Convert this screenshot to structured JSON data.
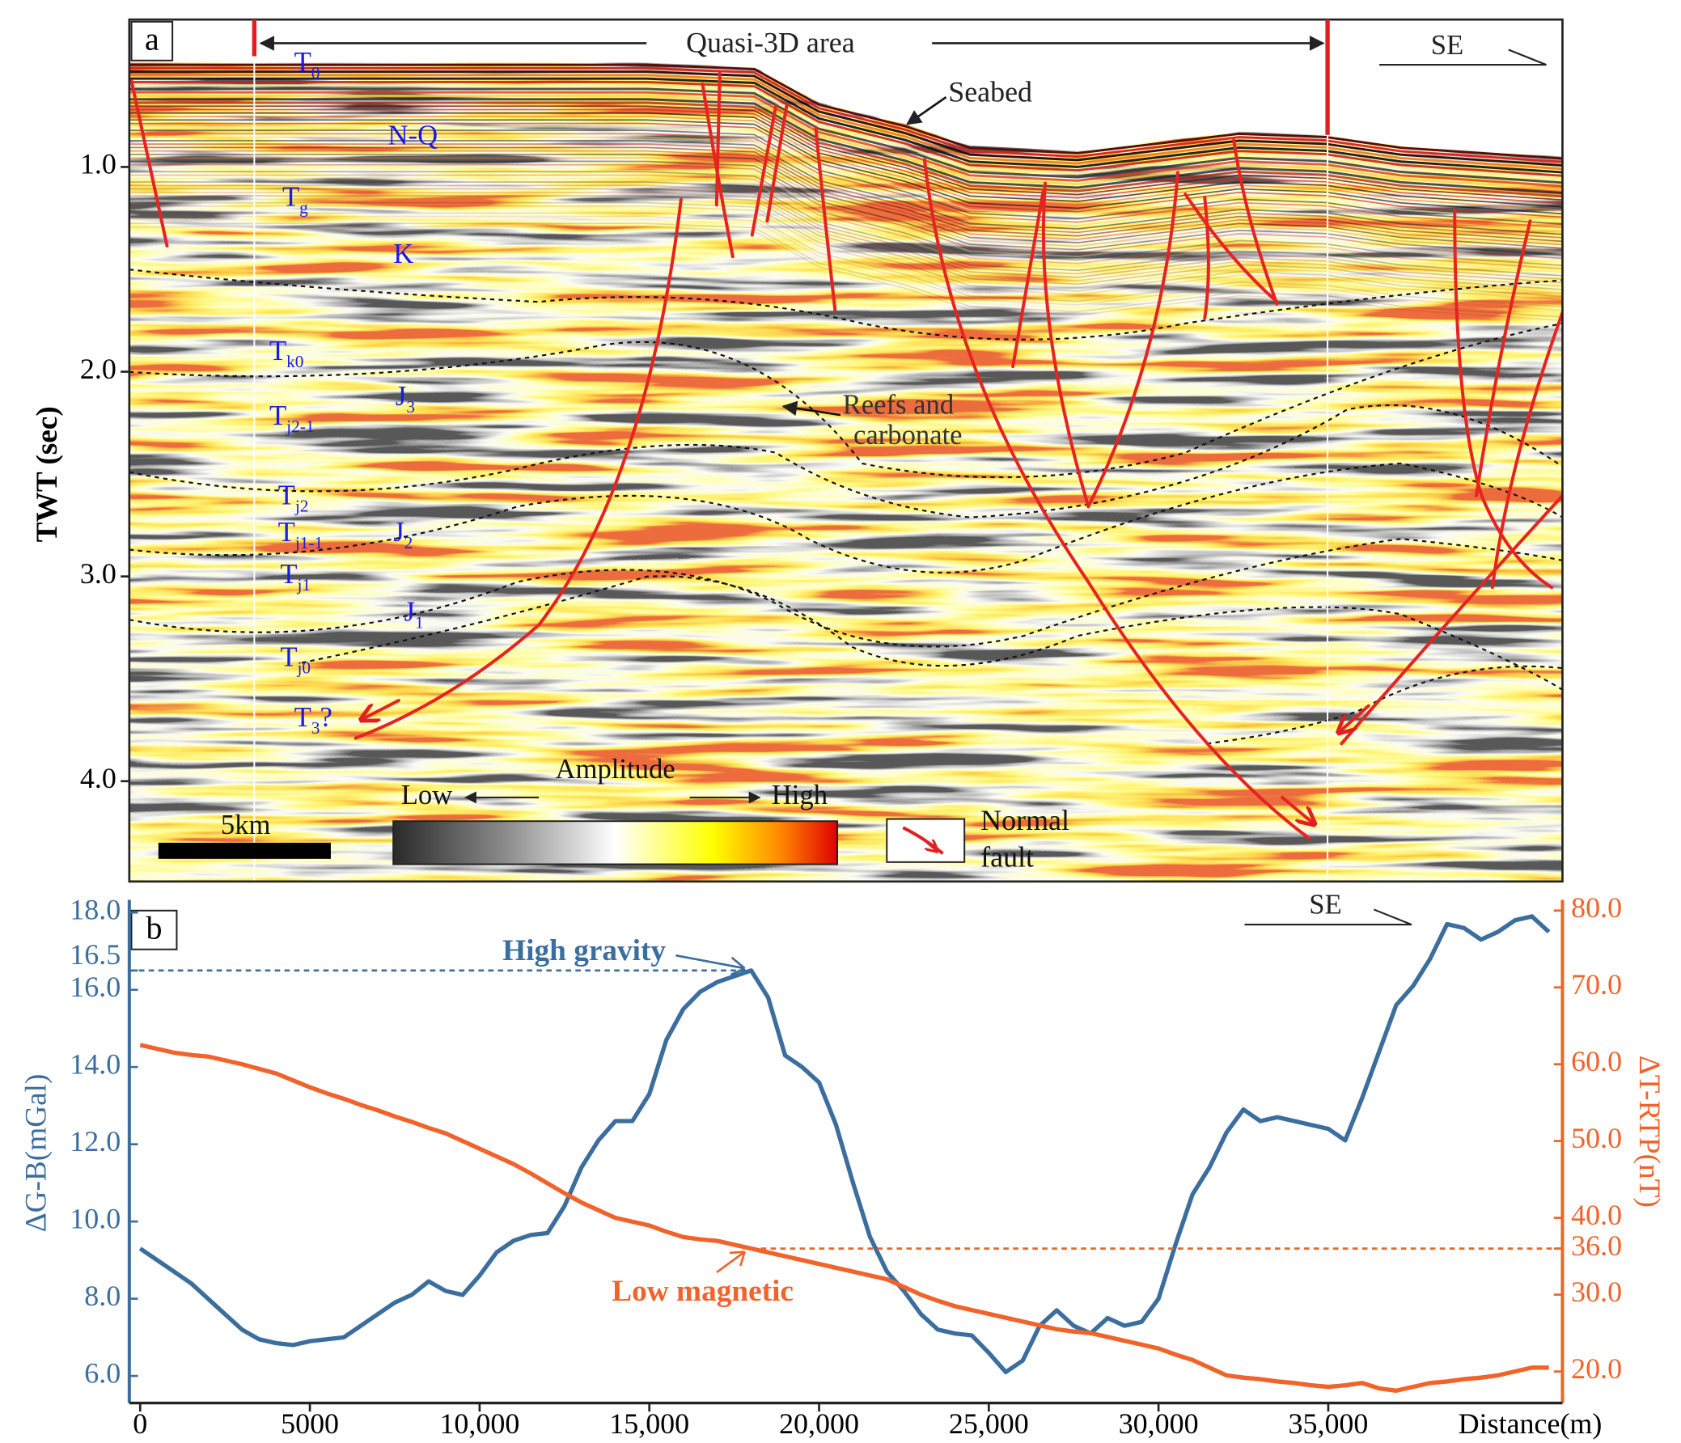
{
  "chart_data": [
    {
      "type": "seismic",
      "panel": "a",
      "ylabel": "TWT (sec)",
      "y_inverted": true,
      "ylim": [
        0.28,
        4.49
      ],
      "yticks": [
        {
          "value": 1,
          "label": "1.0"
        },
        {
          "value": 2,
          "label": "2.0"
        },
        {
          "value": 3,
          "label": "3.0"
        },
        {
          "value": 4,
          "label": "4.0"
        }
      ],
      "area": "Quasi-3D area",
      "direction": "SE",
      "seabed": "Seabed",
      "reefs": [
        "Reefs and",
        "carbonate"
      ],
      "horizons": [
        {
          "text": "T",
          "sub": "0"
        },
        {
          "text": "N-Q"
        },
        {
          "text": "T",
          "sub": "g"
        },
        {
          "text": "K"
        },
        {
          "text": "T",
          "sub": "k0"
        },
        {
          "text": "J",
          "sub": "3"
        },
        {
          "text": "T",
          "sub": "j2-1"
        },
        {
          "text": "T",
          "sub": "j2"
        },
        {
          "text": "T",
          "sub": "j1-1"
        },
        {
          "text": "J",
          "sub": "2"
        },
        {
          "text": "T",
          "sub": "j1"
        },
        {
          "text": "J",
          "sub": "1"
        },
        {
          "text": "T",
          "sub": "j0"
        },
        {
          "text": "T",
          "sub": "3",
          "after": "?"
        }
      ],
      "colorbar": {
        "title": "Amplitude",
        "low": "Low",
        "high": "High"
      },
      "scale_bar": "5km",
      "legend": [
        "Normal",
        "fault"
      ]
    },
    {
      "type": "line",
      "panel": "b",
      "direction": "SE",
      "xlabel": "Distance(m)",
      "ylabel": "ΔG-B(mGal)",
      "y2label": "ΔT-RTP(nT)",
      "xlim": [
        -320,
        41900
      ],
      "xticks": [
        0,
        5000,
        {
          "value": 10000,
          "label": "10,000"
        },
        {
          "value": 15000,
          "label": "15,000"
        },
        {
          "value": 20000,
          "label": "20,000"
        },
        {
          "value": 25000,
          "label": "25,000"
        },
        {
          "value": 30000,
          "label": "30,000"
        },
        {
          "value": 35000,
          "label": "35,000"
        }
      ],
      "ylim": [
        5.3,
        18.33
      ],
      "yticks": [
        {
          "value": 6,
          "label": "6.0"
        },
        {
          "value": 8,
          "label": "8.0"
        },
        {
          "value": 10,
          "label": "10.0"
        },
        {
          "value": 12,
          "label": "12.0"
        },
        {
          "value": 14,
          "label": "14.0"
        },
        {
          "value": 16,
          "label": "16.0"
        },
        {
          "value": 16.5,
          "label": "16.5"
        },
        {
          "value": 18,
          "label": "18.0"
        }
      ],
      "y2lim": [
        15.9,
        81.4
      ],
      "y2ticks": [
        {
          "value": 20,
          "label": "20.0"
        },
        {
          "value": 30,
          "label": "30.0"
        },
        {
          "value": 36,
          "label": "36.0"
        },
        {
          "value": 40,
          "label": "40.0"
        },
        {
          "value": 50,
          "label": "50.0"
        },
        {
          "value": 60,
          "label": "60.0"
        },
        {
          "value": 70,
          "label": "70.0"
        },
        {
          "value": 80,
          "label": "80.0"
        }
      ],
      "y_color": "#3b6e9e",
      "y2_color": "#f0632b",
      "annotations": [
        {
          "text": "High gravity",
          "axis": "y",
          "value": 16.5
        },
        {
          "text": "Low magnetic",
          "axis": "y2",
          "value": 36
        }
      ],
      "x": [
        0,
        500,
        1000,
        1500,
        2000,
        2500,
        3000,
        3500,
        4000,
        4500,
        5000,
        5500,
        6000,
        6500,
        7000,
        7500,
        8000,
        8500,
        9000,
        9500,
        10000,
        10500,
        11000,
        11500,
        12000,
        12500,
        13000,
        13500,
        14000,
        14500,
        15000,
        15500,
        16000,
        16500,
        17000,
        17500,
        18000,
        18500,
        19000,
        19500,
        20000,
        20500,
        21000,
        21500,
        22000,
        22500,
        23000,
        23500,
        24000,
        24500,
        25000,
        25500,
        26000,
        26500,
        27000,
        27500,
        28000,
        28500,
        29000,
        29500,
        30000,
        30500,
        31000,
        31500,
        32000,
        32500,
        33000,
        33500,
        34000,
        34500,
        35000,
        35500,
        36000,
        36500,
        37000,
        37500,
        38000,
        38500,
        39000,
        39500,
        40000,
        40500,
        41000,
        41500
      ],
      "series": [
        {
          "color": "#3b6e9e",
          "axis": "y",
          "values": [
            9.3,
            9.0,
            8.7,
            8.4,
            8.0,
            7.6,
            7.2,
            6.95,
            6.85,
            6.8,
            6.9,
            6.95,
            7.0,
            7.3,
            7.6,
            7.9,
            8.1,
            8.45,
            8.2,
            8.1,
            8.6,
            9.2,
            9.5,
            9.65,
            9.7,
            10.4,
            11.4,
            12.1,
            12.6,
            12.6,
            13.3,
            14.7,
            15.5,
            15.95,
            16.2,
            16.35,
            16.5,
            15.8,
            14.3,
            14.0,
            13.6,
            12.5,
            11.0,
            9.6,
            8.7,
            8.2,
            7.6,
            7.2,
            7.1,
            7.05,
            6.6,
            6.1,
            6.4,
            7.3,
            7.7,
            7.3,
            7.1,
            7.5,
            7.3,
            7.4,
            8.0,
            9.4,
            10.7,
            11.4,
            12.3,
            12.9,
            12.6,
            12.7,
            12.6,
            12.5,
            12.4,
            12.1,
            13.2,
            14.4,
            15.6,
            16.1,
            16.8,
            17.7,
            17.6,
            17.3,
            17.5,
            17.8,
            17.9,
            17.5
          ]
        },
        {
          "color": "#f0632b",
          "axis": "y2",
          "values": [
            62.5,
            62,
            61.5,
            61.2,
            61.0,
            60.5,
            60.0,
            59.4,
            58.8,
            57.9,
            57.0,
            56.2,
            55.5,
            54.7,
            54.0,
            53.2,
            52.5,
            51.7,
            51.0,
            50.0,
            49.0,
            48.0,
            47.0,
            45.8,
            44.5,
            43.2,
            42.0,
            41.0,
            40.0,
            39.5,
            39.0,
            38.2,
            37.5,
            37.2,
            37.0,
            36.5,
            36.0,
            35.5,
            35.0,
            34.5,
            34.0,
            33.5,
            33.0,
            32.5,
            32.0,
            31.0,
            30.0,
            29.2,
            28.5,
            28.0,
            27.5,
            27.0,
            26.5,
            26.0,
            25.5,
            25.2,
            25.0,
            24.5,
            24.0,
            23.5,
            23.0,
            22.2,
            21.5,
            20.5,
            19.5,
            19.2,
            19.0,
            18.7,
            18.5,
            18.2,
            18.0,
            18.2,
            18.5,
            17.8,
            17.5,
            18.0,
            18.5,
            18.7,
            19.0,
            19.2,
            19.5,
            20.0,
            20.5,
            20.5
          ]
        }
      ]
    }
  ]
}
